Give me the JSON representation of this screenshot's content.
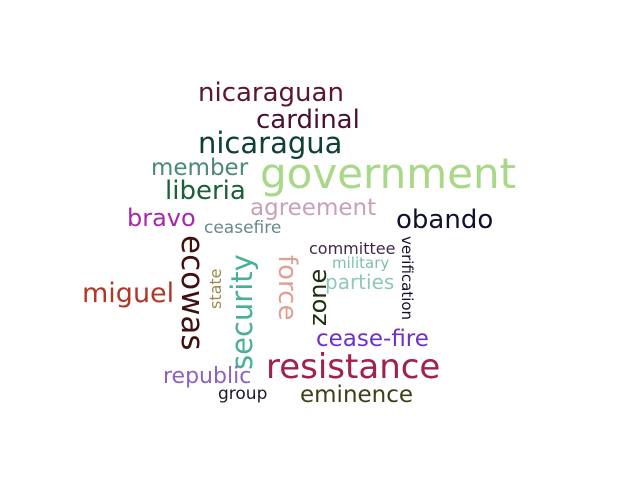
{
  "words": [
    {
      "text": "nicaraguan",
      "color": "#5e1530"
    },
    {
      "text": "cardinal",
      "color": "#4a1030"
    },
    {
      "text": "nicaragua",
      "color": "#0e4038"
    },
    {
      "text": "member",
      "color": "#4a8878"
    },
    {
      "text": "government",
      "color": "#a8d888"
    },
    {
      "text": "liberia",
      "color": "#1a6038"
    },
    {
      "text": "agreement",
      "color": "#c8a0b8"
    },
    {
      "text": "bravo",
      "color": "#a828a8"
    },
    {
      "text": "obando",
      "color": "#101030"
    },
    {
      "text": "ceasefire",
      "color": "#6a8888"
    },
    {
      "text": "ecowas",
      "color": "#401010"
    },
    {
      "text": "security",
      "color": "#48b098"
    },
    {
      "text": "force",
      "color": "#e0a090"
    },
    {
      "text": "zone",
      "color": "#1c3010"
    },
    {
      "text": "committee",
      "color": "#402848"
    },
    {
      "text": "military",
      "color": "#80c0a8"
    },
    {
      "text": "parties",
      "color": "#90c8b8"
    },
    {
      "text": "verification",
      "color": "#101030"
    },
    {
      "text": "miguel",
      "color": "#b03828"
    },
    {
      "text": "state",
      "color": "#a08850"
    },
    {
      "text": "cease-fire",
      "color": "#7030c8"
    },
    {
      "text": "resistance",
      "color": "#a02050"
    },
    {
      "text": "republic",
      "color": "#9060c0"
    },
    {
      "text": "group",
      "color": "#181830"
    },
    {
      "text": "eminence",
      "color": "#404018"
    }
  ]
}
